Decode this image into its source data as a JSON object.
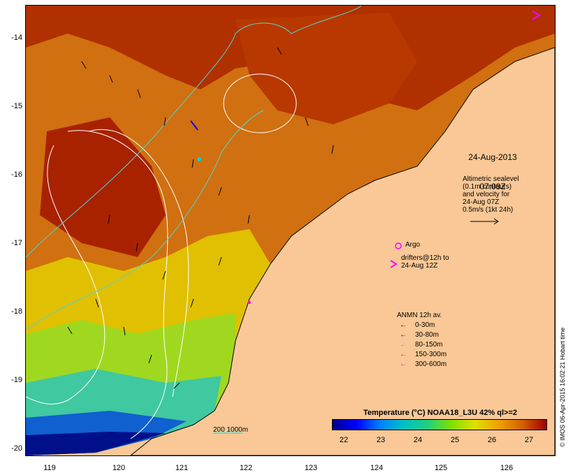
{
  "map": {
    "date": "24-Aug-2013",
    "time": "07:08Z",
    "altimetry_note": "Altimetric sealevel\n(0.1m contours)\nand velocity for\n24-Aug 07Z\n0.5m/s (1kt 24h)",
    "argo_label": "Argo",
    "drifters_label": "drifters@12h to\n24-Aug 12Z",
    "bathymetry_scale_label": "200  1000m",
    "land_color": "#f9c896",
    "current_contour_color": "#4fd6d0"
  },
  "axes": {
    "lat_labels": [
      "-14",
      "-15",
      "-16",
      "-17",
      "-18",
      "-19",
      "-20"
    ],
    "lon_labels": [
      "119",
      "120",
      "121",
      "122",
      "123",
      "124",
      "125",
      "126"
    ]
  },
  "moorings_legend": {
    "title": "ANMN 12h av.",
    "items": [
      {
        "label": "0-30m",
        "color": "#000000"
      },
      {
        "label": "30-80m",
        "color": "#0000ff"
      },
      {
        "label": "80-150m",
        "color": "#00d0d0"
      },
      {
        "label": "150-300m",
        "color": "#ff0000"
      },
      {
        "label": "300-600m",
        "color": "#ff00ff"
      }
    ]
  },
  "colorbar": {
    "title": "Temperature (°C) NOAA18_L3U 42% ql>=2",
    "ticks": [
      "22",
      "23",
      "24",
      "25",
      "26",
      "27"
    ],
    "colors": [
      "#00008b",
      "#0000ff",
      "#0080ff",
      "#00c0c0",
      "#20d080",
      "#80e000",
      "#e0e000",
      "#f0a000",
      "#d06000",
      "#a00000"
    ]
  },
  "credit": "© IMOS 06-Apr-2015 16:02:21 Hobart time"
}
